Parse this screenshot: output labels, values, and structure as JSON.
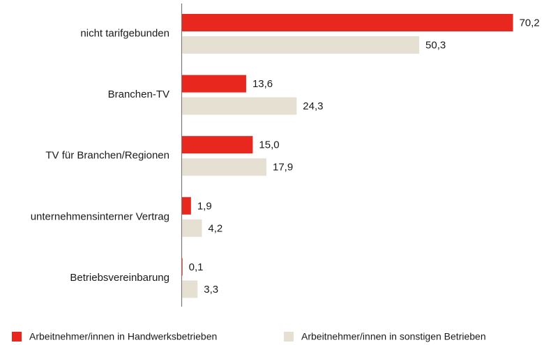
{
  "chart_data": {
    "type": "hbar",
    "categories": [
      "nicht tarifgebunden",
      "Branchen-TV",
      "TV für Branchen/Regionen",
      "unternehmensinterner Vertrag",
      "Betriebsvereinbarung"
    ],
    "series": [
      {
        "name": "Arbeitnehmer/innen in Handwerksbetrieben",
        "color": "#e8271e",
        "values": [
          70.2,
          13.6,
          15.0,
          1.9,
          0.1
        ],
        "value_labels": [
          "70,2",
          "13,6",
          "15,0",
          "1,9",
          "0,1"
        ]
      },
      {
        "name": "Arbeitnehmer/innen in sonstigen Betrieben",
        "color": "#e6e0d2",
        "values": [
          50.3,
          24.3,
          17.9,
          4.2,
          3.3
        ],
        "value_labels": [
          "50,3",
          "24,3",
          "17,9",
          "4,2",
          "3,3"
        ]
      }
    ],
    "xlim": [
      0,
      71
    ],
    "legend": "bottom"
  }
}
